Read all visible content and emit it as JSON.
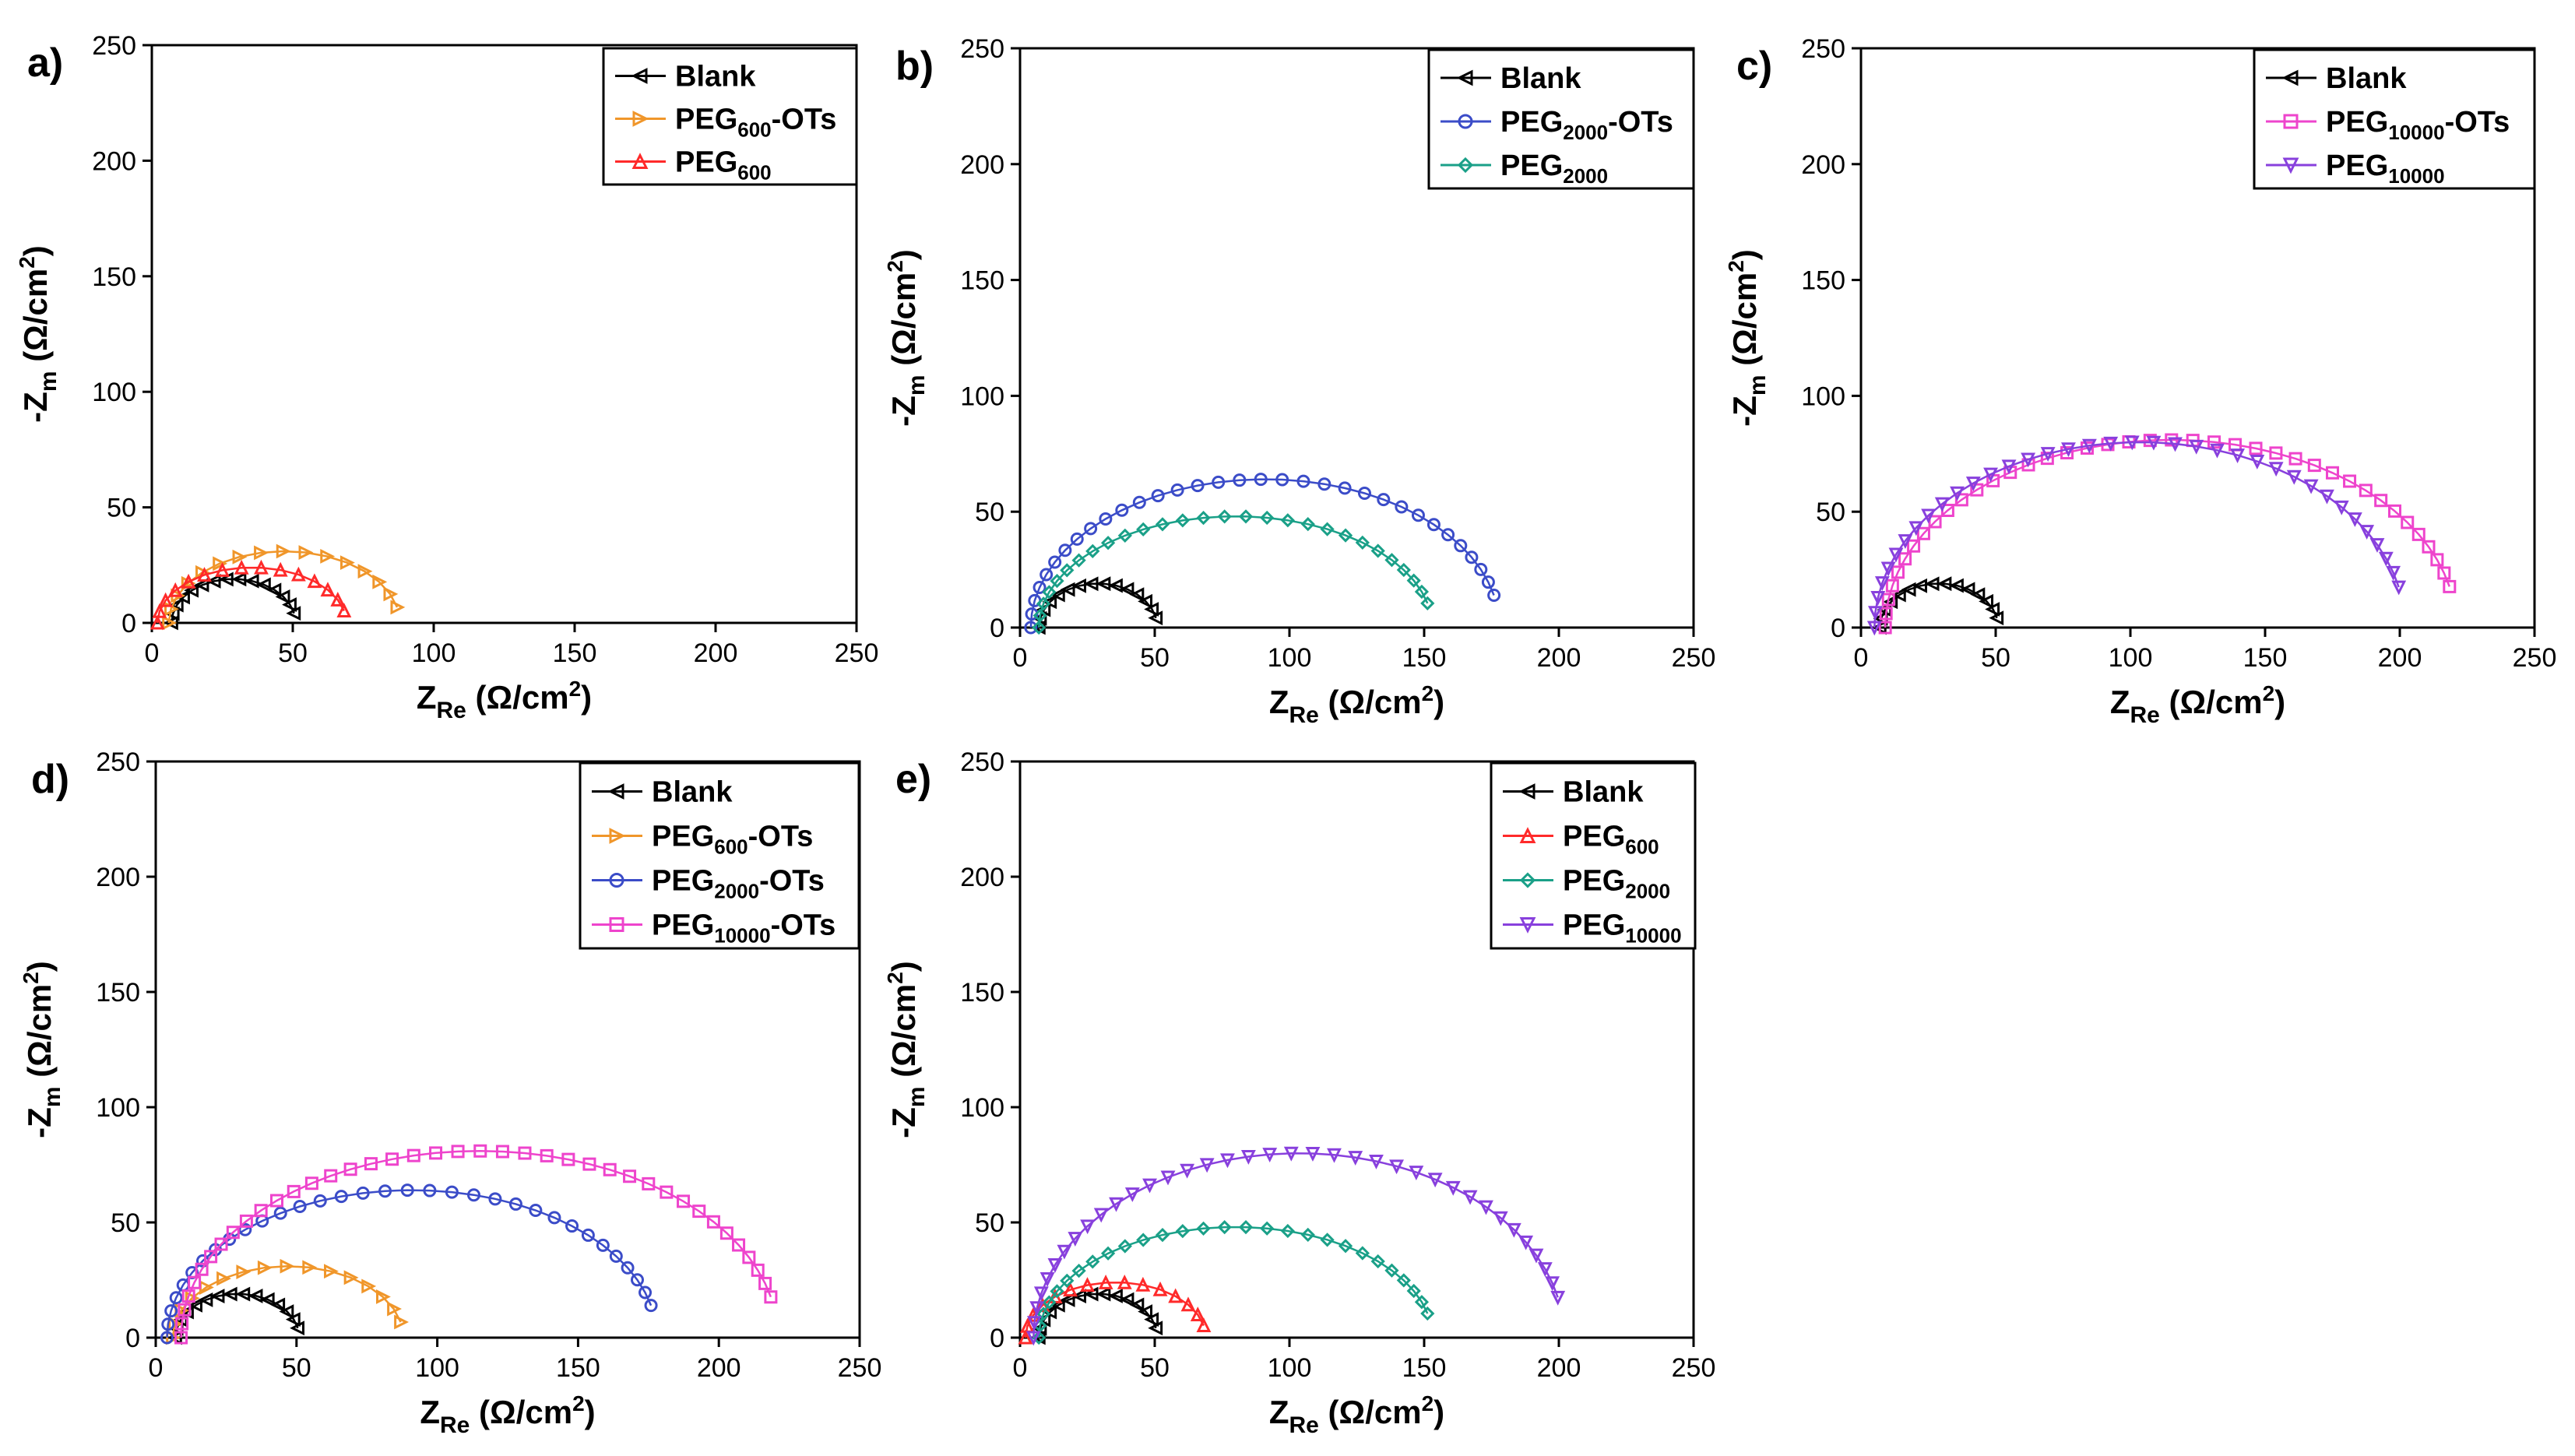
{
  "chart_data": [
    {
      "panel": "a)",
      "type": "scatter",
      "xlabel": "Z_Re (Ω/cm²)",
      "ylabel": "-Z_m (Ω/cm²)",
      "xlim": [
        0,
        250
      ],
      "ylim": [
        0,
        250
      ],
      "xticks": [
        0,
        50,
        100,
        150,
        200,
        250
      ],
      "yticks": [
        0,
        50,
        100,
        150,
        200,
        250
      ],
      "legend_position": "top-right",
      "series": [
        {
          "name": "Blank",
          "label_main": "Blank",
          "label_sub": "",
          "label_suffix": "",
          "color": "#000000",
          "marker": "triangle-left",
          "start": 7,
          "end": 51,
          "top": 19
        },
        {
          "name": "PEG600-OTs",
          "label_main": "PEG",
          "label_sub": "600",
          "label_suffix": "-OTs",
          "color": "#f0962a",
          "marker": "triangle-right",
          "start": 6,
          "end": 88,
          "top": 31
        },
        {
          "name": "PEG600",
          "label_main": "PEG",
          "label_sub": "600",
          "label_suffix": "",
          "color": "#ff2a2a",
          "marker": "triangle-up",
          "start": 2,
          "end": 69,
          "top": 24
        }
      ]
    },
    {
      "panel": "b)",
      "type": "scatter",
      "xlabel": "Z_Re (Ω/cm²)",
      "ylabel": "-Z_m (Ω/cm²)",
      "xlim": [
        0,
        250
      ],
      "ylim": [
        0,
        250
      ],
      "xticks": [
        0,
        50,
        100,
        150,
        200,
        250
      ],
      "yticks": [
        0,
        50,
        100,
        150,
        200,
        250
      ],
      "legend_position": "top-right",
      "series": [
        {
          "name": "Blank",
          "label_main": "Blank",
          "label_sub": "",
          "label_suffix": "",
          "color": "#000000",
          "marker": "triangle-left",
          "start": 7,
          "end": 51,
          "top": 19
        },
        {
          "name": "PEG2000-OTs",
          "label_main": "PEG",
          "label_sub": "2000",
          "label_suffix": "-OTs",
          "color": "#3b4cc8",
          "marker": "circle",
          "start": 4,
          "end": 178,
          "top": 64
        },
        {
          "name": "PEG2000",
          "label_main": "PEG",
          "label_sub": "2000",
          "label_suffix": "",
          "color": "#1aa088",
          "marker": "diamond",
          "start": 7,
          "end": 153,
          "top": 48
        }
      ]
    },
    {
      "panel": "c)",
      "type": "scatter",
      "xlabel": "Z_Re (Ω/cm²)",
      "ylabel": "-Z_m (Ω/cm²)",
      "xlim": [
        0,
        250
      ],
      "ylim": [
        0,
        250
      ],
      "xticks": [
        0,
        50,
        100,
        150,
        200,
        250
      ],
      "yticks": [
        0,
        50,
        100,
        150,
        200,
        250
      ],
      "legend_position": "top-right",
      "series": [
        {
          "name": "Blank",
          "label_main": "Blank",
          "label_sub": "",
          "label_suffix": "",
          "color": "#000000",
          "marker": "triangle-left",
          "start": 7,
          "end": 51,
          "top": 19
        },
        {
          "name": "PEG10000-OTs",
          "label_main": "PEG",
          "label_sub": "10000",
          "label_suffix": "-OTs",
          "color": "#ee44cc",
          "marker": "square",
          "start": 9,
          "end": 221,
          "top": 81
        },
        {
          "name": "PEG10000",
          "label_main": "PEG",
          "label_sub": "10000",
          "label_suffix": "",
          "color": "#8840dd",
          "marker": "triangle-down",
          "start": 5,
          "end": 202,
          "top": 80
        }
      ]
    },
    {
      "panel": "d)",
      "type": "scatter",
      "xlabel": "Z_Re (Ω/cm²)",
      "ylabel": "-Z_m (Ω/cm²)",
      "xlim": [
        0,
        250
      ],
      "ylim": [
        0,
        250
      ],
      "xticks": [
        0,
        50,
        100,
        150,
        200,
        250
      ],
      "yticks": [
        0,
        50,
        100,
        150,
        200,
        250
      ],
      "legend_position": "top-right",
      "series": [
        {
          "name": "Blank",
          "label_main": "Blank",
          "label_sub": "",
          "label_suffix": "",
          "color": "#000000",
          "marker": "triangle-left",
          "start": 7,
          "end": 51,
          "top": 19
        },
        {
          "name": "PEG600-OTs",
          "label_main": "PEG",
          "label_sub": "600",
          "label_suffix": "-OTs",
          "color": "#f0962a",
          "marker": "triangle-right",
          "start": 6,
          "end": 88,
          "top": 31
        },
        {
          "name": "PEG2000-OTs",
          "label_main": "PEG",
          "label_sub": "2000",
          "label_suffix": "-OTs",
          "color": "#3b4cc8",
          "marker": "circle",
          "start": 4,
          "end": 178,
          "top": 64
        },
        {
          "name": "PEG10000-OTs",
          "label_main": "PEG",
          "label_sub": "10000",
          "label_suffix": "-OTs",
          "color": "#ee44cc",
          "marker": "square",
          "start": 9,
          "end": 221,
          "top": 81
        }
      ]
    },
    {
      "panel": "e)",
      "type": "scatter",
      "xlabel": "Z_Re (Ω/cm²)",
      "ylabel": "-Z_m (Ω/cm²)",
      "xlim": [
        0,
        250
      ],
      "ylim": [
        0,
        250
      ],
      "xticks": [
        0,
        50,
        100,
        150,
        200,
        250
      ],
      "yticks": [
        0,
        50,
        100,
        150,
        200,
        250
      ],
      "legend_position": "top-right",
      "series": [
        {
          "name": "Blank",
          "label_main": "Blank",
          "label_sub": "",
          "label_suffix": "",
          "color": "#000000",
          "marker": "triangle-left",
          "start": 7,
          "end": 51,
          "top": 19
        },
        {
          "name": "PEG600",
          "label_main": "PEG",
          "label_sub": "600",
          "label_suffix": "",
          "color": "#ff2a2a",
          "marker": "triangle-up",
          "start": 2,
          "end": 69,
          "top": 24
        },
        {
          "name": "PEG2000",
          "label_main": "PEG",
          "label_sub": "2000",
          "label_suffix": "",
          "color": "#1aa088",
          "marker": "diamond",
          "start": 7,
          "end": 153,
          "top": 48
        },
        {
          "name": "PEG10000",
          "label_main": "PEG",
          "label_sub": "10000",
          "label_suffix": "",
          "color": "#8840dd",
          "marker": "triangle-down",
          "start": 5,
          "end": 202,
          "top": 80
        }
      ]
    }
  ],
  "axis_text": {
    "x_main": "Z",
    "x_sub": "Re",
    "x_unit": " (Ω/cm",
    "y_main": "-Z",
    "y_sub": "m",
    "y_unit": " (Ω/cm",
    "unit_sup": "2",
    "unit_close": ")"
  }
}
